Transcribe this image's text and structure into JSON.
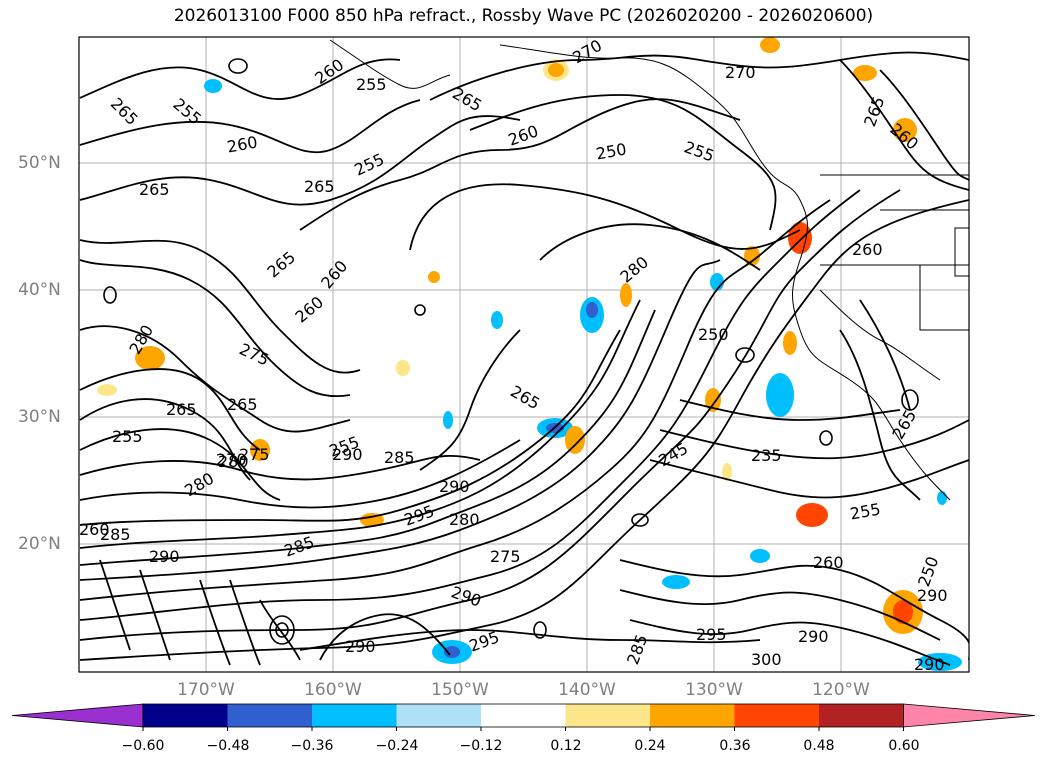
{
  "title": "2026013100 F000 850 hPa refract., Rossby Wave PC (2026020200 - 2026020600)",
  "lat_labels": [
    "50°N",
    "40°N",
    "30°N",
    "20°N"
  ],
  "lon_labels": [
    "170°W",
    "160°W",
    "150°W",
    "140°W",
    "130°W",
    "120°W"
  ],
  "colorbar": {
    "ticks": [
      "−0.60",
      "−0.48",
      "−0.36",
      "−0.24",
      "−0.12",
      "0.12",
      "0.24",
      "0.36",
      "0.48",
      "0.60"
    ],
    "colors": [
      "#9b30d0",
      "#00008b",
      "#3060d0",
      "#00bfff",
      "#aee0f8",
      "#ffffff",
      "#fde68a",
      "#ffa500",
      "#ff4500",
      "#b22222",
      "#ff85a8"
    ]
  },
  "contour_labels": [
    "260",
    "265",
    "255",
    "260",
    "265",
    "255",
    "260",
    "265",
    "260",
    "250",
    "270",
    "270",
    "255",
    "265",
    "260",
    "260",
    "280",
    "275",
    "250",
    "265",
    "265",
    "255",
    "265",
    "260",
    "255",
    "285",
    "265",
    "280",
    "280",
    "275",
    "270",
    "280",
    "245",
    "235",
    "290",
    "295",
    "280",
    "285",
    "275",
    "290",
    "285",
    "295",
    "290",
    "290",
    "295",
    "290",
    "260",
    "265",
    "255",
    "285",
    "300",
    "290",
    "255",
    "260",
    "265",
    "290",
    "250",
    "290"
  ]
}
